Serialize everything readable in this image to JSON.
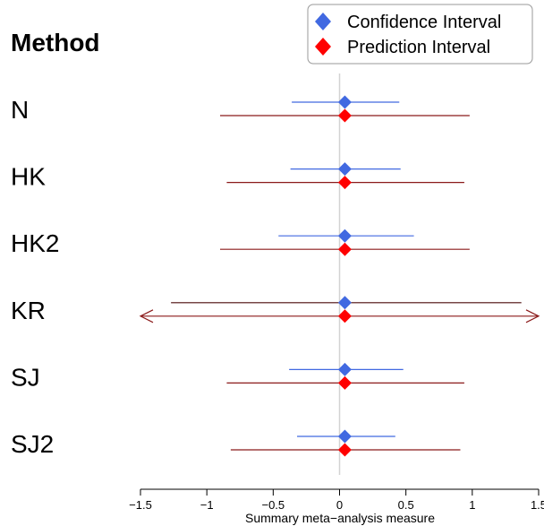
{
  "chart_data": {
    "type": "forest",
    "header": "Method",
    "xlabel": "Summary meta−analysis measure",
    "xlim": [
      -1.5,
      1.5
    ],
    "xticks": [
      -1.5,
      -1,
      -0.5,
      0,
      0.5,
      1,
      1.5
    ],
    "xtick_labels": [
      "−1.5",
      "−1",
      "−0.5",
      "0",
      "0.5",
      "1",
      "1.5"
    ],
    "reference_line": 0,
    "legend": {
      "placement": "top-right",
      "entries": [
        {
          "label": "Confidence Interval",
          "color": "#4169E1"
        },
        {
          "label": "Prediction Interval",
          "color": "#FF0000"
        }
      ]
    },
    "methods": [
      {
        "name": "N",
        "estimate": 0.04,
        "ci": [
          -0.36,
          0.45
        ],
        "pi": [
          -0.9,
          0.98
        ],
        "pi_truncated": false
      },
      {
        "name": "HK",
        "estimate": 0.04,
        "ci": [
          -0.37,
          0.46
        ],
        "pi": [
          -0.85,
          0.94
        ],
        "pi_truncated": false
      },
      {
        "name": "HK2",
        "estimate": 0.04,
        "ci": [
          -0.46,
          0.56
        ],
        "pi": [
          -0.9,
          0.98
        ],
        "pi_truncated": false
      },
      {
        "name": "KR",
        "estimate": 0.04,
        "ci": [
          -1.27,
          1.37
        ],
        "pi": [
          -1.5,
          1.5
        ],
        "pi_truncated": true
      },
      {
        "name": "SJ",
        "estimate": 0.04,
        "ci": [
          -0.38,
          0.48
        ],
        "pi": [
          -0.85,
          0.94
        ],
        "pi_truncated": false
      },
      {
        "name": "SJ2",
        "estimate": 0.04,
        "ci": [
          -0.32,
          0.42
        ],
        "pi": [
          -0.82,
          0.91
        ],
        "pi_truncated": false
      }
    ],
    "colors": {
      "ci_line": "#4169E1",
      "ci_marker": "#4169E1",
      "pi_line": "#8B1A1A",
      "pi_marker": "#FF0000",
      "kr_ci_line": "#4B0A0A",
      "reference": "#D3D3D3"
    }
  }
}
